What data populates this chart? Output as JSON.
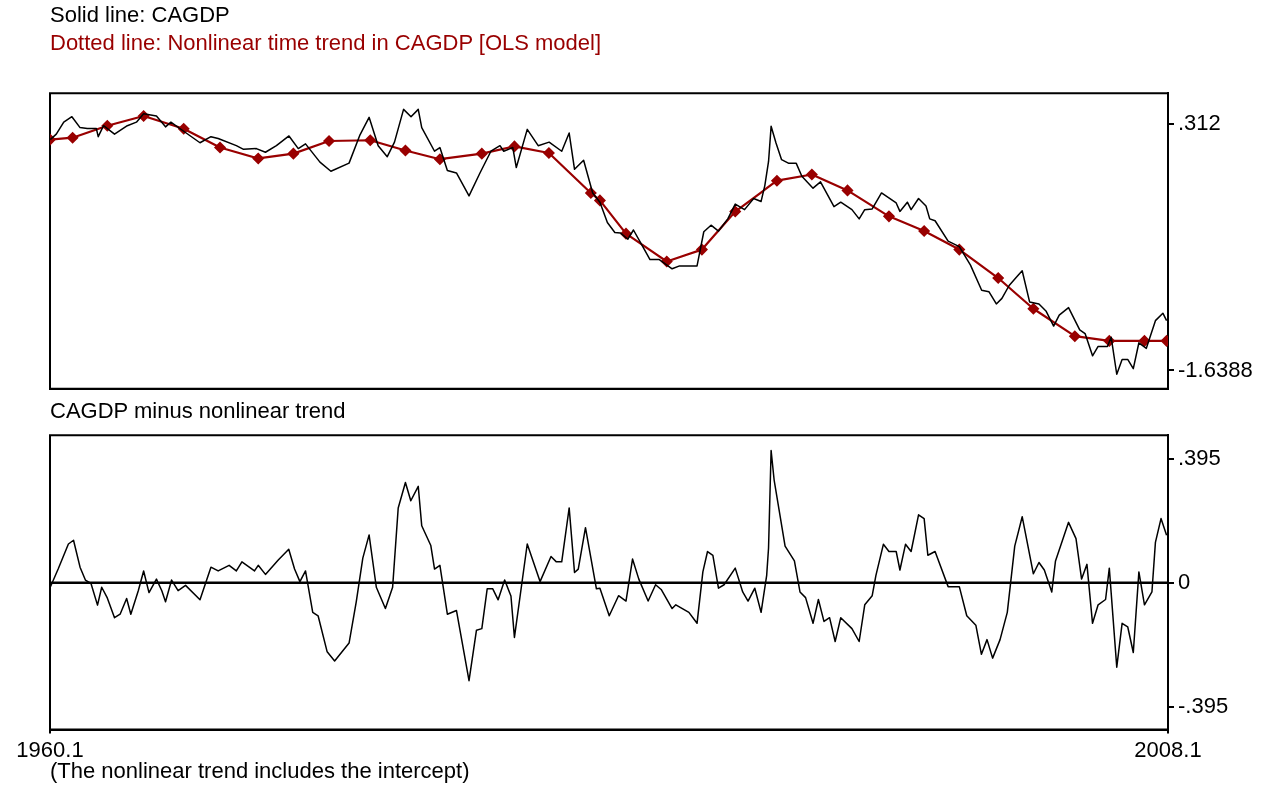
{
  "chart_data": [
    {
      "type": "line",
      "title": "Solid line: CAGDP",
      "subtitle": "Dotted line: Nonlinear time trend in CAGDP [OLS model]",
      "xlim": [
        1960.1,
        2008.1
      ],
      "ylim": [
        -1.784,
        0.554
      ],
      "yticks": [
        {
          "value": 0.312,
          "label": ".312"
        },
        -1.6388
      ],
      "tick_labels": "y",
      "series": [
        {
          "color": "#000000",
          "marker": "none",
          "x": [
            1960.11,
            1960.37,
            1960.69,
            1961.04,
            1961.39,
            1961.7,
            1962.09,
            1962.17,
            1962.4,
            1962.87,
            1963.42,
            1963.81,
            1964.12,
            1964.67,
            1965.06,
            1965.29,
            1965.84,
            1966.54,
            1967.01,
            1967.32,
            1968.1,
            1968.41,
            1968.96,
            1969.35,
            1969.82,
            1970.36,
            1970.76,
            1971.07,
            1971.69,
            1972.16,
            1972.94,
            1973.41,
            1973.8,
            1974.19,
            1974.58,
            1974.89,
            1975.28,
            1975.6,
            1975.91,
            1976.06,
            1976.61,
            1976.84,
            1977.16,
            1977.55,
            1978.09,
            1978.56,
            1979.03,
            1979.42,
            1979.58,
            1979.97,
            1980.12,
            1980.59,
            1981.06,
            1981.53,
            1982.07,
            1982.39,
            1982.62,
            1983.01,
            1983.4,
            1983.71,
            1984.03,
            1984.35,
            1984.59,
            1984.91,
            1985.15,
            1985.46,
            1985.86,
            1986.26,
            1986.81,
            1987.13,
            1987.88,
            1988.17,
            1988.48,
            1988.8,
            1989.2,
            1989.52,
            1989.92,
            1990.31,
            1990.63,
            1990.79,
            1990.95,
            1991.06,
            1991.27,
            1991.51,
            1991.82,
            1992.14,
            1992.38,
            1992.86,
            1993.18,
            1993.76,
            1994.05,
            1994.53,
            1994.84,
            1995.08,
            1995.4,
            1995.8,
            1996.43,
            1996.59,
            1996.91,
            1997.07,
            1997.39,
            1997.71,
            1997.87,
            1998.1,
            1998.66,
            1999.14,
            1999.62,
            2000.1,
            2000.41,
            2000.73,
            2000.97,
            2001.28,
            2001.84,
            2002.16,
            2002.56,
            2002.87,
            2003.19,
            2003.43,
            2003.83,
            2004.31,
            2004.54,
            2004.86,
            2005.1,
            2005.5,
            2005.66,
            2005.9,
            2006.13,
            2006.37,
            2006.61,
            2006.85,
            2007.17,
            2007.56,
            2007.88,
            2008.04
          ],
          "values": [
            0.187,
            0.23,
            0.325,
            0.368,
            0.282,
            0.274,
            0.274,
            0.21,
            0.297,
            0.23,
            0.297,
            0.325,
            0.391,
            0.374,
            0.288,
            0.325,
            0.253,
            0.162,
            0.21,
            0.196,
            0.139,
            0.11,
            0.116,
            0.087,
            0.139,
            0.216,
            0.116,
            0.153,
            0.009,
            -0.063,
            0.001,
            0.225,
            0.363,
            0.139,
            0.052,
            0.167,
            0.426,
            0.368,
            0.426,
            0.282,
            0.095,
            0.124,
            -0.057,
            -0.077,
            -0.258,
            -0.077,
            0.095,
            0.139,
            0.095,
            0.124,
            -0.034,
            0.268,
            0.139,
            0.167,
            0.095,
            0.239,
            -0.048,
            0.024,
            -0.235,
            -0.308,
            -0.469,
            -0.548,
            -0.551,
            -0.601,
            -0.528,
            -0.63,
            -0.762,
            -0.762,
            -0.835,
            -0.812,
            -0.812,
            -0.542,
            -0.49,
            -0.537,
            -0.44,
            -0.323,
            -0.367,
            -0.279,
            -0.302,
            -0.177,
            0.014,
            0.292,
            0.16,
            0.028,
            -0.001,
            -0.001,
            -0.103,
            -0.197,
            -0.147,
            -0.343,
            -0.308,
            -0.367,
            -0.44,
            -0.367,
            -0.361,
            -0.235,
            -0.314,
            -0.381,
            -0.308,
            -0.367,
            -0.279,
            -0.338,
            -0.44,
            -0.455,
            -0.616,
            -0.659,
            -0.806,
            -1.005,
            -1.016,
            -1.113,
            -1.069,
            -0.967,
            -0.85,
            -1.098,
            -1.113,
            -1.171,
            -1.288,
            -1.201,
            -1.142,
            -1.318,
            -1.347,
            -1.523,
            -1.449,
            -1.449,
            -1.376,
            -1.669,
            -1.552,
            -1.552,
            -1.625,
            -1.42,
            -1.464,
            -1.245,
            -1.186,
            -1.245
          ]
        },
        {
          "color": "#990000",
          "marker": "diamond",
          "x": [
            1960.1,
            1961.07,
            1962.56,
            1964.12,
            1965.84,
            1967.4,
            1969.04,
            1970.55,
            1972.08,
            1973.85,
            1975.36,
            1976.84,
            1978.64,
            1980.04,
            1981.52,
            1983.32,
            1983.71,
            1984.83,
            1986.58,
            1988.09,
            1989.52,
            1991.31,
            1992.81,
            1994.34,
            1996.12,
            1997.63,
            1999.14,
            2000.81,
            2002.32,
            2004.1,
            2005.58,
            2007.09,
            2008.04
          ],
          "values": [
            0.187,
            0.202,
            0.297,
            0.374,
            0.273,
            0.124,
            0.038,
            0.076,
            0.176,
            0.182,
            0.101,
            0.032,
            0.076,
            0.133,
            0.081,
            -0.235,
            -0.294,
            -0.557,
            -0.777,
            -0.683,
            -0.382,
            -0.138,
            -0.089,
            -0.215,
            -0.42,
            -0.536,
            -0.683,
            -0.908,
            -1.151,
            -1.368,
            -1.405,
            -1.405,
            -1.405
          ]
        }
      ]
    },
    {
      "type": "line",
      "title": "CAGDP minus nonlinear trend",
      "xlim": [
        1960.1,
        2008.1
      ],
      "xticks": [
        1960.1,
        2008.1
      ],
      "ylim": [
        -0.468,
        0.471
      ],
      "yticks": [
        {
          "value": 0.395,
          "label": ".395"
        },
        0,
        {
          "value": -0.395,
          "label": "-.395"
        }
      ],
      "ref_lines": [
        {
          "axis": "y",
          "value": 0,
          "color": "#000000"
        }
      ],
      "annotations": [
        "(The nonlinear trend includes the intercept)"
      ],
      "series": [
        {
          "color": "#000000",
          "marker": "none",
          "x": [
            1960.11,
            1960.45,
            1960.89,
            1961.11,
            1961.39,
            1961.62,
            1961.86,
            1962.14,
            1962.32,
            1962.56,
            1962.87,
            1963.11,
            1963.39,
            1963.57,
            1963.89,
            1964.12,
            1964.35,
            1964.67,
            1964.9,
            1965.06,
            1965.32,
            1965.6,
            1965.92,
            1966.54,
            1967.01,
            1967.32,
            1967.79,
            1968.1,
            1968.34,
            1968.88,
            1969.04,
            1969.35,
            1969.9,
            1970.35,
            1970.6,
            1970.83,
            1971.07,
            1971.38,
            1971.61,
            1972.0,
            1972.32,
            1972.94,
            1973.25,
            1973.53,
            1973.8,
            1974.11,
            1974.5,
            1974.81,
            1975.05,
            1975.36,
            1975.59,
            1975.91,
            1976.06,
            1976.45,
            1976.61,
            1976.84,
            1977.16,
            1977.55,
            1978.09,
            1978.41,
            1978.64,
            1978.87,
            1979.11,
            1979.34,
            1979.62,
            1979.89,
            1980.04,
            1980.59,
            1981.14,
            1981.61,
            1981.84,
            1982.07,
            1982.39,
            1982.62,
            1982.78,
            1983.09,
            1983.56,
            1983.71,
            1984.11,
            1984.51,
            1984.83,
            1985.11,
            1985.38,
            1985.78,
            1986.1,
            1986.34,
            1986.81,
            1986.97,
            1987.53,
            1987.88,
            1988.13,
            1988.33,
            1988.56,
            1988.8,
            1989.04,
            1989.52,
            1989.84,
            1990.07,
            1990.36,
            1990.63,
            1990.87,
            1990.95,
            1991.06,
            1991.19,
            1991.66,
            1992.06,
            1992.3,
            1992.54,
            1992.86,
            1993.09,
            1993.33,
            1993.57,
            1993.81,
            1994.05,
            1994.53,
            1994.84,
            1995.08,
            1995.4,
            1995.56,
            1995.88,
            1996.12,
            1996.43,
            1996.59,
            1996.83,
            1997.07,
            1997.39,
            1997.63,
            1997.79,
            1998.1,
            1998.66,
            1999.14,
            1999.46,
            1999.85,
            2000.09,
            2000.33,
            2000.57,
            2000.89,
            2001.2,
            2001.52,
            2001.84,
            2002.32,
            2002.56,
            2002.79,
            2003.11,
            2003.27,
            2003.83,
            2004.15,
            2004.39,
            2004.62,
            2004.86,
            2005.1,
            2005.42,
            2005.58,
            2005.9,
            2006.13,
            2006.37,
            2006.61,
            2006.85,
            2007.09,
            2007.41,
            2007.56,
            2007.8,
            2008.04
          ],
          "values": [
            -0.014,
            0.044,
            0.124,
            0.136,
            0.05,
            0.009,
            -0.002,
            -0.071,
            -0.014,
            -0.048,
            -0.111,
            -0.1,
            -0.05,
            -0.1,
            -0.025,
            0.038,
            -0.031,
            0.012,
            -0.025,
            -0.06,
            0.009,
            -0.025,
            -0.008,
            -0.054,
            0.05,
            0.038,
            0.056,
            0.038,
            0.067,
            0.038,
            0.056,
            0.027,
            0.073,
            0.107,
            0.044,
            0.004,
            0.038,
            -0.094,
            -0.105,
            -0.22,
            -0.249,
            -0.192,
            -0.06,
            0.079,
            0.153,
            -0.014,
            -0.082,
            -0.014,
            0.239,
            0.32,
            0.262,
            0.308,
            0.182,
            0.119,
            0.044,
            0.056,
            -0.1,
            -0.088,
            -0.312,
            -0.151,
            -0.146,
            -0.019,
            -0.019,
            -0.054,
            0.009,
            -0.042,
            -0.174,
            0.124,
            0.004,
            0.084,
            0.067,
            0.067,
            0.239,
            0.033,
            0.044,
            0.176,
            -0.019,
            -0.017,
            -0.105,
            -0.041,
            -0.058,
            0.076,
            0.012,
            -0.058,
            -0.006,
            -0.021,
            -0.082,
            -0.07,
            -0.094,
            -0.129,
            0.035,
            0.1,
            0.088,
            -0.017,
            -0.006,
            0.047,
            -0.029,
            -0.058,
            -0.017,
            -0.094,
            0.024,
            0.111,
            0.422,
            0.328,
            0.117,
            0.07,
            -0.029,
            -0.047,
            -0.129,
            -0.053,
            -0.123,
            -0.111,
            -0.187,
            -0.111,
            -0.146,
            -0.187,
            -0.07,
            -0.041,
            0.024,
            0.123,
            0.1,
            0.1,
            0.041,
            0.123,
            0.1,
            0.217,
            0.205,
            0.088,
            0.1,
            -0.012,
            -0.012,
            -0.105,
            -0.135,
            -0.228,
            -0.181,
            -0.24,
            -0.181,
            -0.094,
            0.117,
            0.211,
            0.029,
            0.065,
            0.041,
            -0.029,
            0.07,
            0.193,
            0.141,
            0.012,
            0.059,
            -0.129,
            -0.07,
            -0.053,
            0.047,
            -0.269,
            -0.129,
            -0.14,
            -0.222,
            0.035,
            -0.07,
            -0.029,
            0.129,
            0.205,
            0.152
          ]
        }
      ]
    }
  ]
}
